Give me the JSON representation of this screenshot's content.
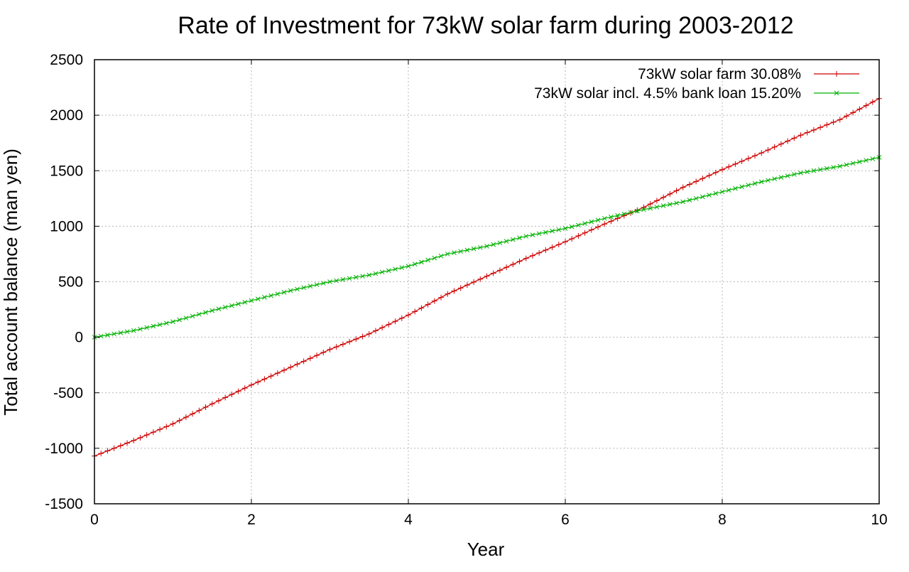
{
  "chart_data": {
    "type": "line",
    "title": "Rate of Investment for 73kW solar farm during 2003-2012",
    "xlabel": "Year",
    "ylabel": "Total account balance (man yen)",
    "xlim": [
      0,
      10
    ],
    "ylim": [
      -1500,
      2500
    ],
    "x_ticks": [
      "0",
      "2",
      "4",
      "6",
      "8",
      "10"
    ],
    "y_ticks": [
      "2500",
      "2000",
      "1500",
      "1000",
      "500",
      "0",
      "-500",
      "-1000",
      "-1500"
    ],
    "grid": true,
    "legend_position": "top-right",
    "series": [
      {
        "name": "73kW solar farm 30.08%",
        "color": "#cc0000",
        "marker": "plus",
        "x": [
          0,
          0.5,
          1,
          1.5,
          2,
          2.5,
          3,
          3.5,
          4,
          4.5,
          5,
          5.5,
          6,
          6.5,
          7,
          7.5,
          8,
          8.5,
          9,
          9.5,
          10
        ],
        "y": [
          -1070,
          -930,
          -780,
          -600,
          -430,
          -270,
          -110,
          30,
          200,
          390,
          550,
          710,
          860,
          1020,
          1170,
          1350,
          1510,
          1660,
          1820,
          1960,
          2150
        ]
      },
      {
        "name": "73kW solar incl. 4.5% bank loan 15.20%",
        "color": "#00b000",
        "marker": "x",
        "x": [
          0,
          0.5,
          1,
          1.5,
          2,
          2.5,
          3,
          3.5,
          4,
          4.5,
          5,
          5.5,
          6,
          6.5,
          7,
          7.5,
          8,
          8.5,
          9,
          9.5,
          10
        ],
        "y": [
          0,
          60,
          140,
          240,
          330,
          420,
          500,
          560,
          640,
          750,
          820,
          910,
          980,
          1070,
          1150,
          1220,
          1310,
          1400,
          1480,
          1540,
          1620
        ]
      }
    ]
  }
}
